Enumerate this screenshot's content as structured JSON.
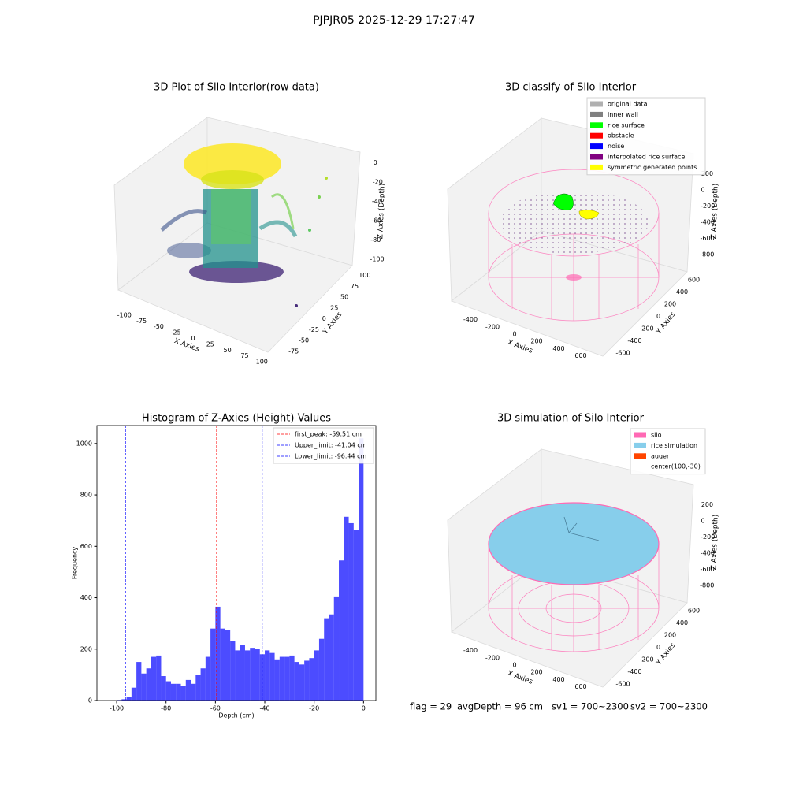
{
  "title": "PJPJR05 2025-12-29 17:27:47",
  "chart_data": [
    {
      "type": "scatter3d",
      "title": "3D Plot of Silo Interior(row data)",
      "xlabel": "X Axies",
      "ylabel": "Y Axies",
      "zlabel": "Z Axies (Depth)",
      "xlim": [
        -110,
        110
      ],
      "ylim": [
        -90,
        110
      ],
      "zlim": [
        -110,
        10
      ],
      "xticks": [
        -100,
        -75,
        -50,
        -25,
        0,
        25,
        50,
        75,
        100
      ],
      "yticks": [
        -75,
        -50,
        -25,
        0,
        25,
        50,
        75,
        100
      ],
      "zticks": [
        -100,
        -80,
        -60,
        -40,
        -20,
        0
      ]
    },
    {
      "type": "scatter3d",
      "title": "3D classify of Silo Interior",
      "xlabel": "X Axies",
      "ylabel": "Y Axies",
      "zlabel": "Z Axies (Depth)",
      "xlim": [
        -500,
        700
      ],
      "ylim": [
        -700,
        700
      ],
      "zlim": [
        -900,
        300
      ],
      "xticks": [
        -400,
        -200,
        0,
        200,
        400,
        600
      ],
      "yticks": [
        -600,
        -400,
        -200,
        0,
        200,
        400,
        600
      ],
      "zticks": [
        -800,
        -600,
        -400,
        -200,
        0,
        200
      ],
      "legend": [
        {
          "name": "original data",
          "color": "#b0b0b0"
        },
        {
          "name": "inner wall",
          "color": "#808080"
        },
        {
          "name": "rice surface",
          "color": "#00ff00"
        },
        {
          "name": "obstacle",
          "color": "#ff0000"
        },
        {
          "name": "noise",
          "color": "#0000ff"
        },
        {
          "name": "interpolated rice surface",
          "color": "#800080"
        },
        {
          "name": "symmetric generated points",
          "color": "#ffff00"
        }
      ]
    },
    {
      "type": "histogram",
      "title": "Histogram of Z-Axies (Height) Values",
      "xlabel": "Depth (cm)",
      "ylabel": "Frequency",
      "color": "#0000ff",
      "bins": [
        -100,
        -98,
        -96,
        -94,
        -92,
        -90,
        -88,
        -86,
        -84,
        -82,
        -80,
        -78,
        -76,
        -74,
        -72,
        -70,
        -68,
        -66,
        -64,
        -62,
        -60,
        -58,
        -56,
        -54,
        -52,
        -50,
        -48,
        -46,
        -44,
        -42,
        -40,
        -38,
        -36,
        -34,
        -32,
        -30,
        -28,
        -26,
        -24,
        -22,
        -20,
        -18,
        -16,
        -14,
        -12,
        -10,
        -8,
        -6,
        -4,
        -2,
        0
      ],
      "counts": [
        2,
        5,
        15,
        50,
        150,
        105,
        125,
        170,
        175,
        95,
        75,
        65,
        65,
        58,
        80,
        65,
        100,
        125,
        170,
        280,
        365,
        280,
        275,
        230,
        195,
        215,
        195,
        205,
        200,
        180,
        195,
        185,
        160,
        170,
        170,
        175,
        150,
        140,
        155,
        165,
        195,
        240,
        320,
        335,
        405,
        545,
        715,
        690,
        665,
        1020
      ],
      "xlim": [
        -108,
        5
      ],
      "ylim": [
        0,
        1070
      ],
      "xticks": [
        -100,
        -80,
        -60,
        -40,
        -20,
        0
      ],
      "yticks": [
        0,
        200,
        400,
        600,
        800,
        1000
      ],
      "lines": [
        {
          "name": "first_peak: -59.51 cm",
          "value": -59.51,
          "color": "#ff0000"
        },
        {
          "name": "Upper_limit: -41.04 cm",
          "value": -41.04,
          "color": "#0000ff"
        },
        {
          "name": "Lower_limit: -96.44 cm",
          "value": -96.44,
          "color": "#0000ff"
        }
      ]
    },
    {
      "type": "scatter3d",
      "title": "3D simulation of Silo Interior",
      "xlabel": "X Axies",
      "ylabel": "Y Axies",
      "zlabel": "Z Axies (Depth)",
      "xlim": [
        -500,
        700
      ],
      "ylim": [
        -700,
        700
      ],
      "zlim": [
        -900,
        300
      ],
      "xticks": [
        -400,
        -200,
        0,
        200,
        400,
        600
      ],
      "yticks": [
        -600,
        -400,
        -200,
        0,
        200,
        400,
        600
      ],
      "zticks": [
        -800,
        -600,
        -400,
        -200,
        0,
        200
      ],
      "legend": [
        {
          "name": "silo",
          "color": "#ff69b4"
        },
        {
          "name": "rice simulation",
          "color": "#87ceeb"
        },
        {
          "name": "auger",
          "color": "#ff4500"
        },
        {
          "name": "center(100,-30)"
        }
      ]
    }
  ],
  "footer": [
    "flag = 29",
    "avgDepth = 96 cm",
    "sv1 = 700~2300",
    "sv2 = 700~2300"
  ]
}
